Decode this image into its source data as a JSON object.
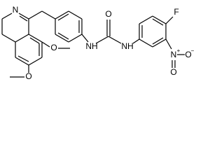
{
  "atoms": {
    "ring_n": "N",
    "methoxy_o_upper": "O",
    "methoxy_o_lower": "O",
    "nh_left": "NH",
    "nh_right": "NH",
    "carbonyl_o": "O",
    "fluorine": "F",
    "nitro_n": "N",
    "nitro_n_charge": "+",
    "nitro_o_minus": "O",
    "nitro_o_charge": "−",
    "nitro_o": "O"
  }
}
